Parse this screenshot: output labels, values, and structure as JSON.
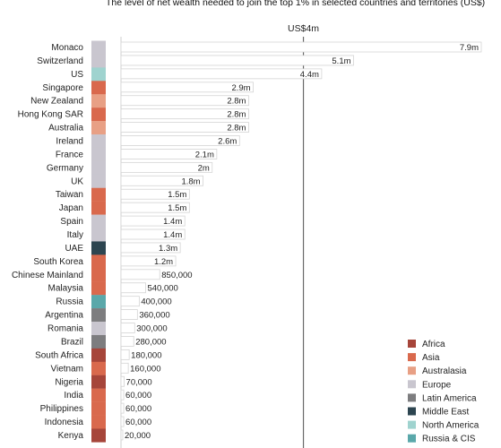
{
  "chart_data": {
    "type": "bar",
    "subtitle": "The level of net wealth needed to join the top 1% in selected countries and territories (US$)",
    "reference_line": {
      "label": "US$4m",
      "value": 4000000
    },
    "xlim": [
      0,
      8000000
    ],
    "categories": [
      "Monaco",
      "Switzerland",
      "US",
      "Singapore",
      "New Zealand",
      "Hong Kong SAR",
      "Australia",
      "Ireland",
      "France",
      "Germany",
      "UK",
      "Taiwan",
      "Japan",
      "Spain",
      "Italy",
      "UAE",
      "South Korea",
      "Chinese Mainland",
      "Malaysia",
      "Russia",
      "Argentina",
      "Romania",
      "Brazil",
      "South Africa",
      "Vietnam",
      "Nigeria",
      "India",
      "Philippines",
      "Indonesia",
      "Kenya"
    ],
    "values": [
      7900000,
      5100000,
      4400000,
      2900000,
      2800000,
      2800000,
      2800000,
      2600000,
      2100000,
      2000000,
      1800000,
      1500000,
      1500000,
      1400000,
      1400000,
      1300000,
      1200000,
      850000,
      540000,
      400000,
      360000,
      300000,
      280000,
      180000,
      160000,
      70000,
      60000,
      60000,
      60000,
      20000
    ],
    "value_labels": [
      "7.9m",
      "5.1m",
      "4.4m",
      "2.9m",
      "2.8m",
      "2.8m",
      "2.8m",
      "2.6m",
      "2.1m",
      "2m",
      "1.8m",
      "1.5m",
      "1.5m",
      "1.4m",
      "1.4m",
      "1.3m",
      "1.2m",
      "850,000",
      "540,000",
      "400,000",
      "360,000",
      "300,000",
      "280,000",
      "180,000",
      "160,000",
      "70,000",
      "60,000",
      "60,000",
      "60,000",
      "20,000"
    ],
    "regions": [
      "Europe",
      "Europe",
      "North America",
      "Asia",
      "Australasia",
      "Asia",
      "Australasia",
      "Europe",
      "Europe",
      "Europe",
      "Europe",
      "Asia",
      "Asia",
      "Europe",
      "Europe",
      "Middle East",
      "Asia",
      "Asia",
      "Asia",
      "Russia & CIS",
      "Latin America",
      "Europe",
      "Latin America",
      "Africa",
      "Asia",
      "Africa",
      "Asia",
      "Asia",
      "Asia",
      "Africa"
    ],
    "legend": [
      {
        "name": "Africa",
        "color": "#a6453a"
      },
      {
        "name": "Asia",
        "color": "#d9694d"
      },
      {
        "name": "Australasia",
        "color": "#e8a085"
      },
      {
        "name": "Europe",
        "color": "#c9c6cf"
      },
      {
        "name": "Latin America",
        "color": "#7d7d7f"
      },
      {
        "name": "Middle East",
        "color": "#2d4550"
      },
      {
        "name": "North America",
        "color": "#9fd3cf"
      },
      {
        "name": "Russia & CIS",
        "color": "#5aa8aa"
      }
    ],
    "legend_position": "bottom-right",
    "grid": false
  }
}
